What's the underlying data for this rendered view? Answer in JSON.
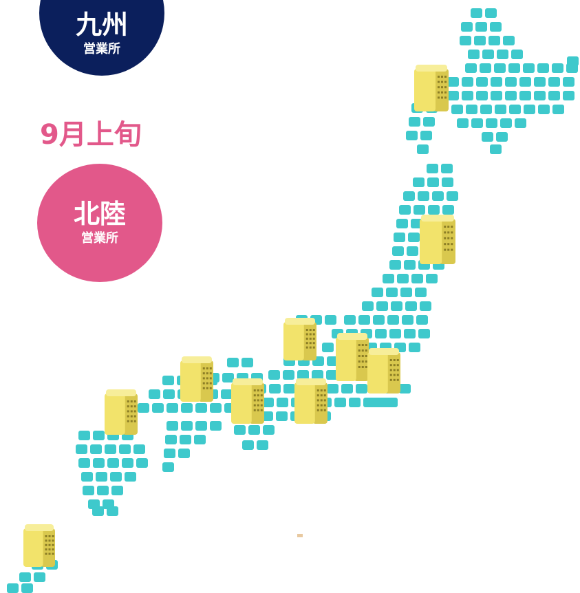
{
  "kyushu_badge": {
    "name": "九州",
    "sub": "営業所",
    "color": "#0b1f5c"
  },
  "date_label": {
    "text": "9月上旬",
    "color": "#e2588a"
  },
  "hokuriku_badge": {
    "name": "北陸",
    "sub": "営業所",
    "color": "#e2588a"
  },
  "map": {
    "tile_color": "#3ec9cc",
    "building_color": "#f2e36b",
    "icons": [
      "office-building-icon"
    ]
  }
}
